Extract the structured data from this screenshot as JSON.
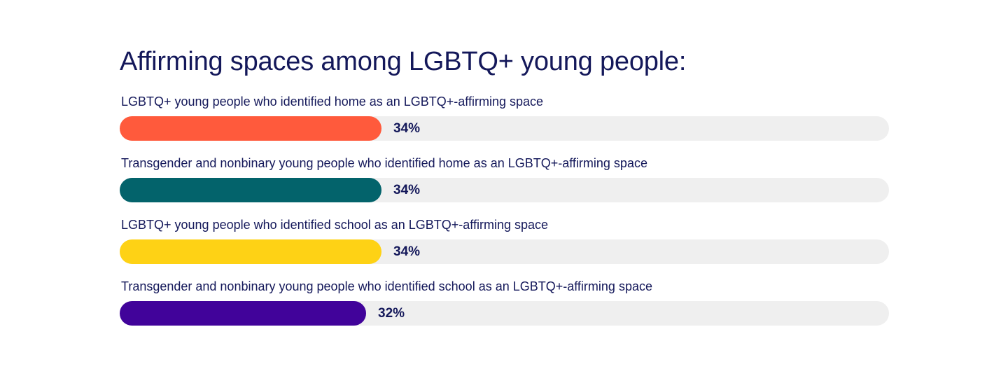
{
  "chart_data": {
    "type": "bar",
    "orientation": "horizontal",
    "title": "Affirming spaces among LGBTQ+ young people:",
    "xlim": [
      0,
      100
    ],
    "categories": [
      "LGBTQ+ young people who identified home as an LGBTQ+-affirming space",
      "Transgender and nonbinary young people who identified home as an LGBTQ+-affirming space",
      "LGBTQ+ young people who identified school as an LGBTQ+-affirming space",
      "Transgender and nonbinary young people who identified school as an LGBTQ+-affirming space"
    ],
    "values": [
      34,
      34,
      34,
      32
    ],
    "value_labels": [
      "34%",
      "34%",
      "34%",
      "32%"
    ],
    "colors": [
      "#ff5a3c",
      "#03636b",
      "#fed215",
      "#41039a"
    ],
    "track_color": "#efefef",
    "grid": false,
    "legend": "none"
  }
}
